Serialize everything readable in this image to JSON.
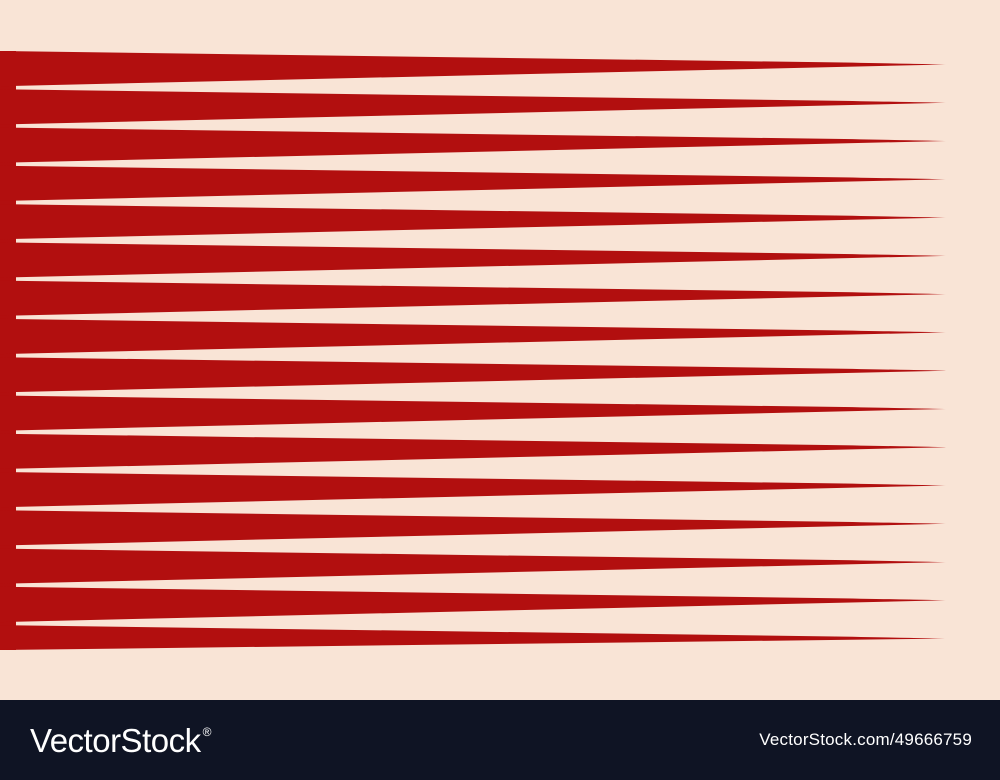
{
  "artwork": {
    "background_color": "#f9e4d6",
    "stripe_color": "#b20f0f",
    "stripe_count": 16
  },
  "footer": {
    "background_color": "#0f1424",
    "brand": "VectorStock",
    "brand_mark": "®",
    "image_id": "VectorStock.com/49666759"
  }
}
